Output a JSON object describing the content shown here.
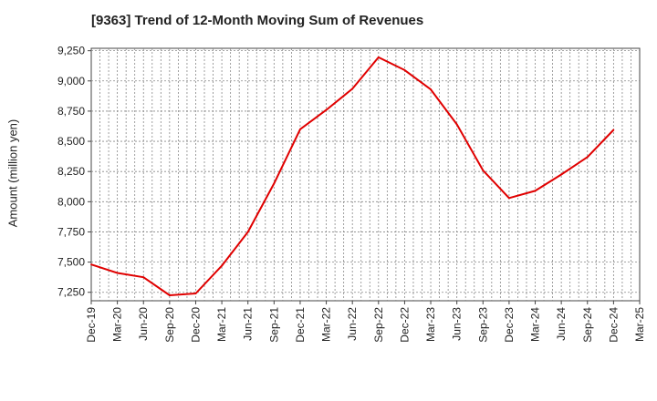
{
  "chart_data": {
    "type": "line",
    "title": "[9363]  Trend of 12-Month Moving Sum of Revenues",
    "ylabel": "Amount (million yen)",
    "xlabel": "",
    "ylim": [
      7180,
      9270
    ],
    "y_ticks": [
      7250,
      7500,
      7750,
      8000,
      8250,
      8500,
      8750,
      9000,
      9250
    ],
    "y_tick_labels": [
      "7,250",
      "7,500",
      "7,750",
      "8,000",
      "8,250",
      "8,500",
      "8,750",
      "9,000",
      "9,250"
    ],
    "x_ticks": [
      "Dec-19",
      "Mar-20",
      "Jun-20",
      "Sep-20",
      "Dec-20",
      "Mar-21",
      "Jun-21",
      "Sep-21",
      "Dec-21",
      "Mar-22",
      "Jun-22",
      "Sep-22",
      "Dec-22",
      "Mar-23",
      "Jun-23",
      "Sep-23",
      "Dec-23",
      "Mar-24",
      "Jun-24",
      "Sep-24",
      "Dec-24",
      "Mar-25"
    ],
    "series": [
      {
        "color": "#e00000",
        "x": [
          "Dec-19",
          "Mar-20",
          "Jun-20",
          "Sep-20",
          "Dec-20",
          "Mar-21",
          "Jun-21",
          "Sep-21",
          "Dec-21",
          "Mar-22",
          "Jun-22",
          "Sep-22",
          "Dec-22",
          "Mar-23",
          "Jun-23",
          "Sep-23",
          "Dec-23",
          "Mar-24",
          "Jun-24",
          "Sep-24",
          "Dec-24"
        ],
        "values": [
          7480,
          7410,
          7375,
          7225,
          7240,
          7470,
          7750,
          8150,
          8600,
          8760,
          8935,
          9195,
          9090,
          8930,
          8640,
          8260,
          8030,
          8090,
          8225,
          8370,
          8595
        ]
      }
    ],
    "grid": true,
    "legend": "none"
  }
}
